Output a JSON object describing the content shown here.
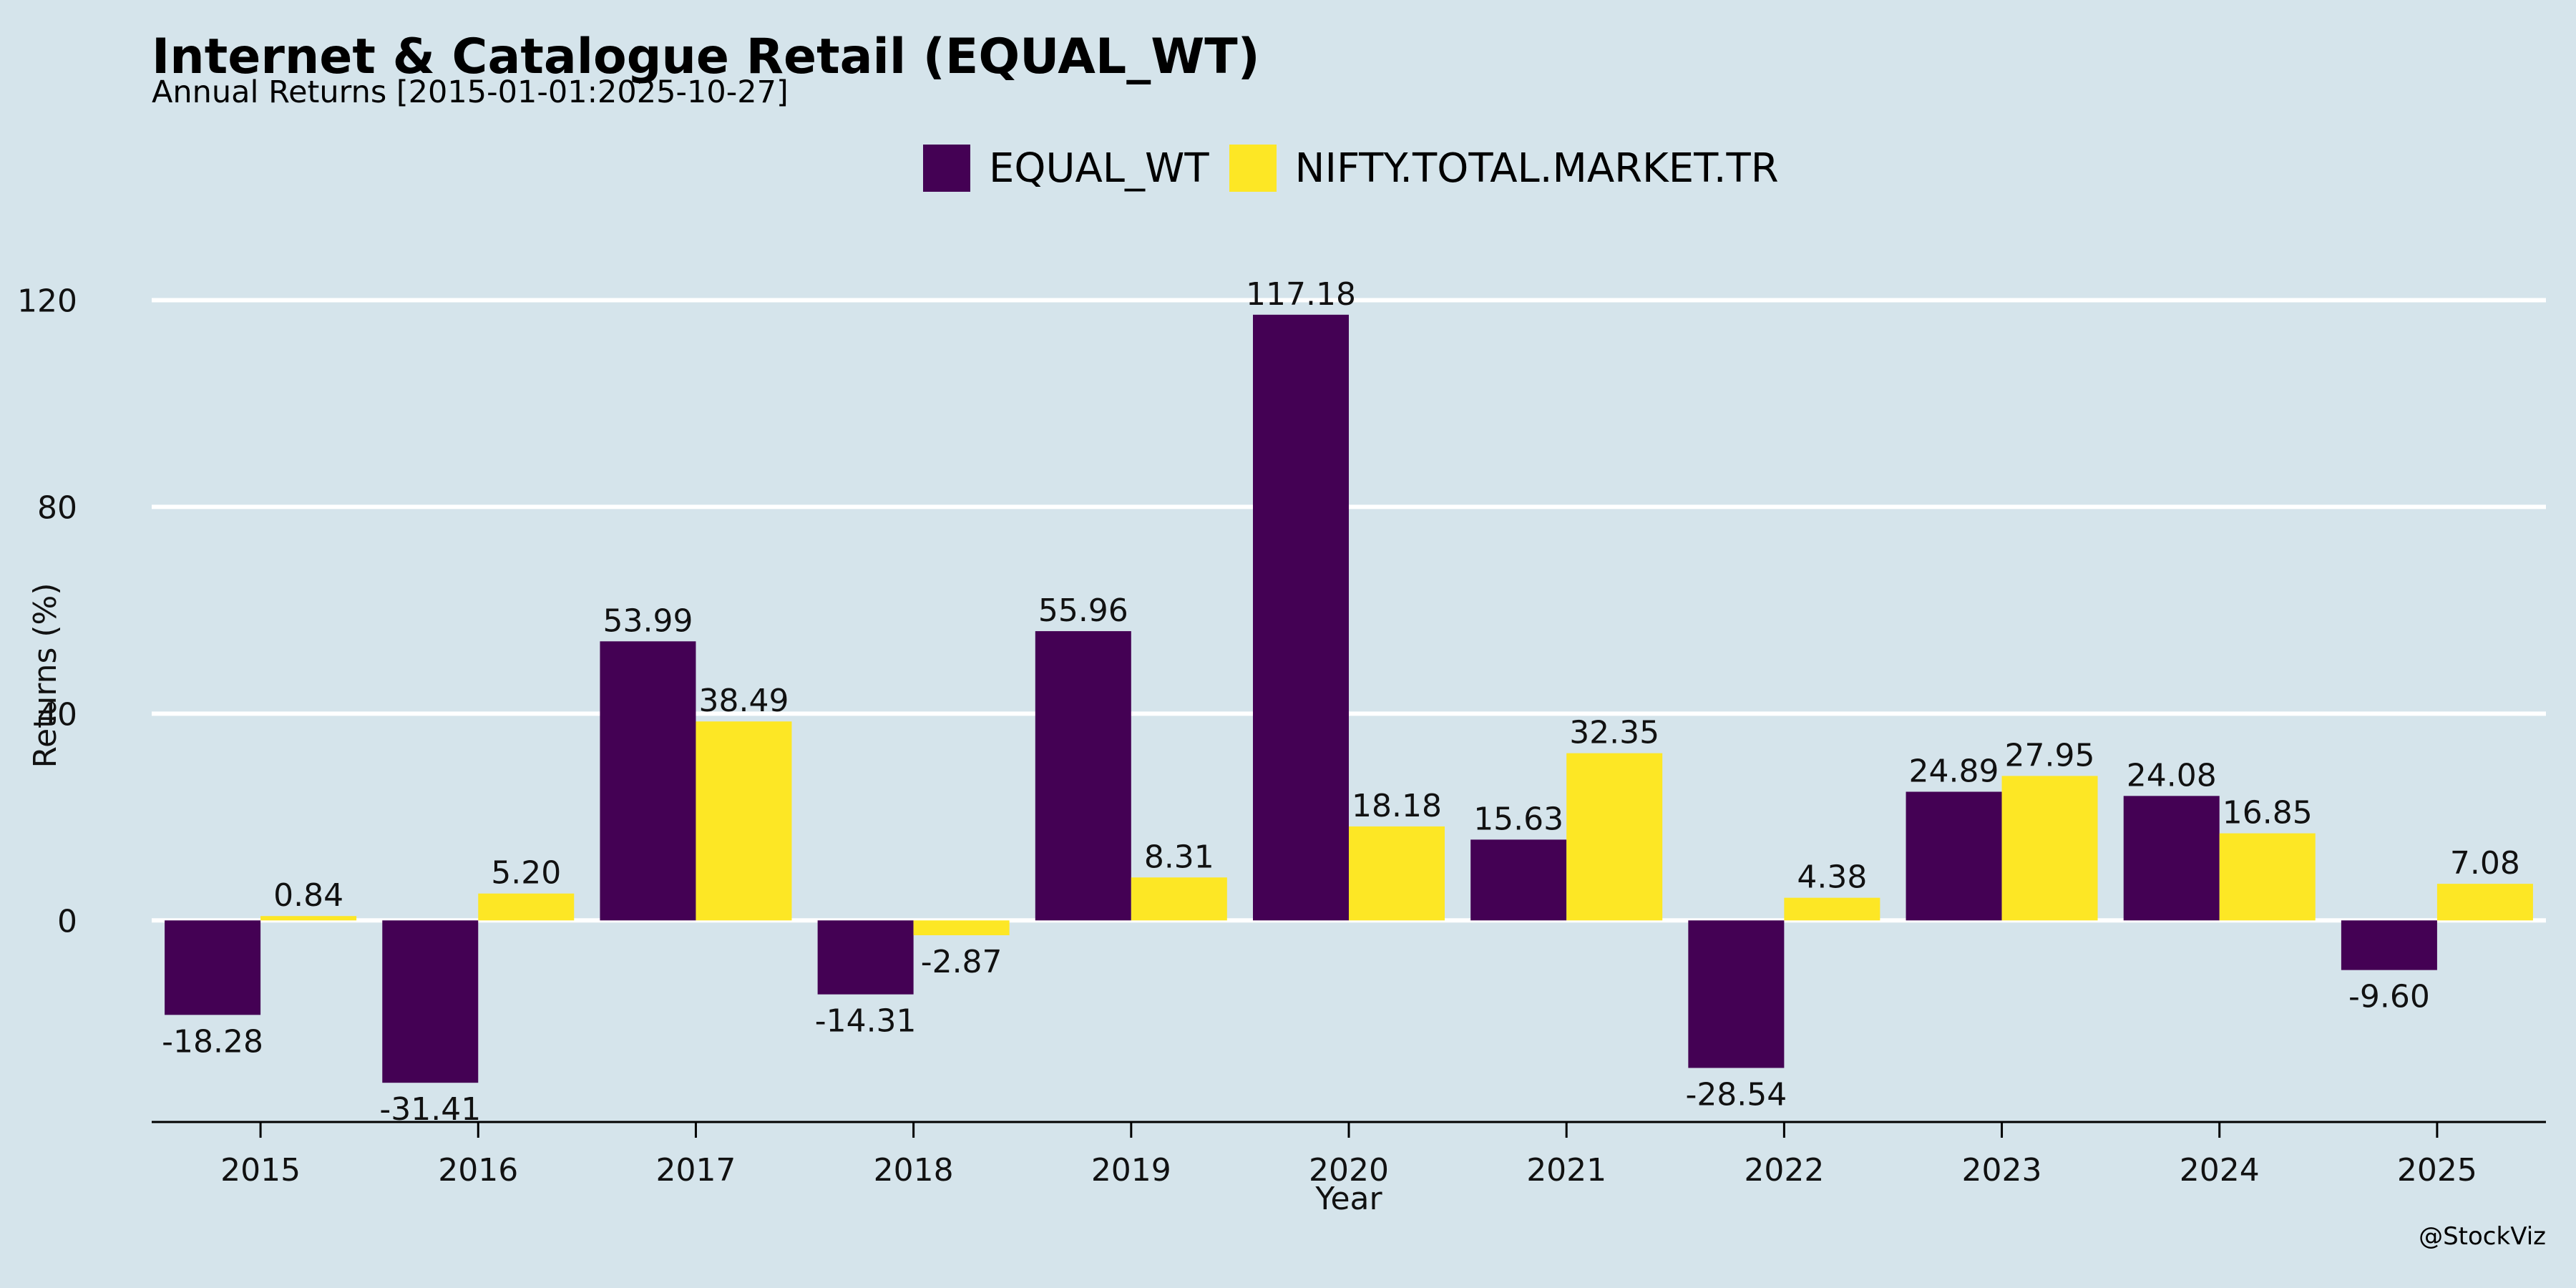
{
  "header": {
    "title": "Internet & Catalogue Retail (EQUAL_WT)",
    "subtitle": "Annual Returns [2015-01-01:2025-10-27]"
  },
  "watermark": "@StockViz",
  "colors": {
    "background": "#d5e4eb",
    "series_1": "#440154",
    "series_2": "#fde725",
    "grid": "#ffffff"
  },
  "chart_data": {
    "type": "bar",
    "xlabel": "Year",
    "ylabel": "Returns (%)",
    "ylim": [
      -39,
      131
    ],
    "yticks": [
      0,
      40,
      80,
      120
    ],
    "grid": true,
    "legend_position": "top-center",
    "categories": [
      "2015",
      "2016",
      "2017",
      "2018",
      "2019",
      "2020",
      "2021",
      "2022",
      "2023",
      "2024",
      "2025"
    ],
    "series": [
      {
        "name": "EQUAL_WT",
        "values": [
          -18.28,
          -31.41,
          53.99,
          -14.31,
          55.96,
          117.18,
          15.63,
          -28.54,
          24.89,
          24.08,
          -9.6
        ],
        "labels": [
          "-18.28",
          "-31.41",
          "53.99",
          "-14.31",
          "55.96",
          "117.18",
          "15.63",
          "-28.54",
          "24.89",
          "24.08",
          "-9.60"
        ]
      },
      {
        "name": "NIFTY.TOTAL.MARKET.TR",
        "values": [
          0.84,
          5.2,
          38.49,
          -2.87,
          8.31,
          18.18,
          32.35,
          4.38,
          27.95,
          16.85,
          7.08
        ],
        "labels": [
          "0.84",
          "5.20",
          "38.49",
          "-2.87",
          "8.31",
          "18.18",
          "32.35",
          "4.38",
          "27.95",
          "16.85",
          "7.08"
        ]
      }
    ]
  }
}
